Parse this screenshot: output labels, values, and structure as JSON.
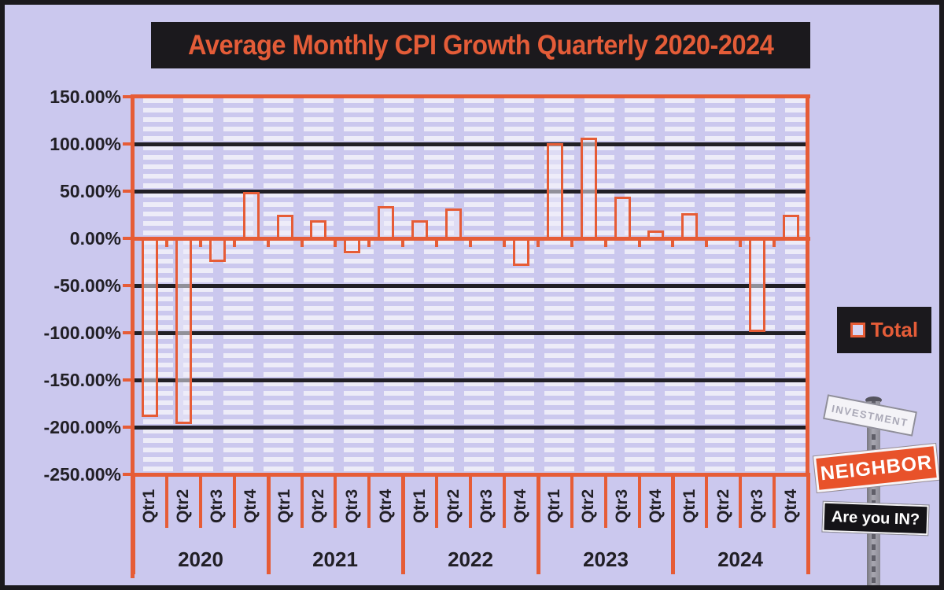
{
  "header": {
    "title": "Average Monthly CPI Growth Quarterly 2020-2024"
  },
  "legend": {
    "label": "Total"
  },
  "logo": {
    "sign1": "INVESTMENT",
    "sign2": "NEIGHBOR",
    "sign3": "Are you IN?"
  },
  "colors": {
    "page_background": "#CBC8EE",
    "accent_orange": "#E65C36",
    "panel_black": "#1B191D",
    "gridline_black": "#211F25",
    "bar_fill": "rgba(238,237,250,0.55)",
    "pattern_dash": "#EDECF8",
    "sign_orange": "#E8522A"
  },
  "chart_data": {
    "type": "bar",
    "title": "Average Monthly CPI Growth Quarterly 2020-2024",
    "unit": "percent",
    "categories": [
      "Qtr1",
      "Qtr2",
      "Qtr3",
      "Qtr4",
      "Qtr1",
      "Qtr2",
      "Qtr3",
      "Qtr4",
      "Qtr1",
      "Qtr2",
      "Qtr3",
      "Qtr4",
      "Qtr1",
      "Qtr2",
      "Qtr3",
      "Qtr4",
      "Qtr1",
      "Qtr2",
      "Qtr3",
      "Qtr4"
    ],
    "year_groups": [
      "2020",
      "2021",
      "2022",
      "2023",
      "2024"
    ],
    "series": [
      {
        "name": "Total",
        "values": [
          -188,
          -196,
          -24,
          49,
          25,
          19,
          -15,
          34,
          19,
          32,
          0,
          -28,
          101,
          107,
          44,
          8,
          27,
          0,
          -98,
          25
        ]
      }
    ],
    "ylim": [
      -250,
      150
    ],
    "ytick_values": [
      150,
      100,
      50,
      0,
      -50,
      -100,
      -150,
      -200,
      -250
    ],
    "ytick_labels": [
      "150.00%",
      "100.00%",
      "50.00%",
      "0.00%",
      "-50.00%",
      "-100.00%",
      "-150.00%",
      "-200.00%",
      "-250.00%"
    ],
    "grid": "horizontal major lines every 50%",
    "legend_position": "right",
    "legend_entries": [
      "Total"
    ]
  }
}
